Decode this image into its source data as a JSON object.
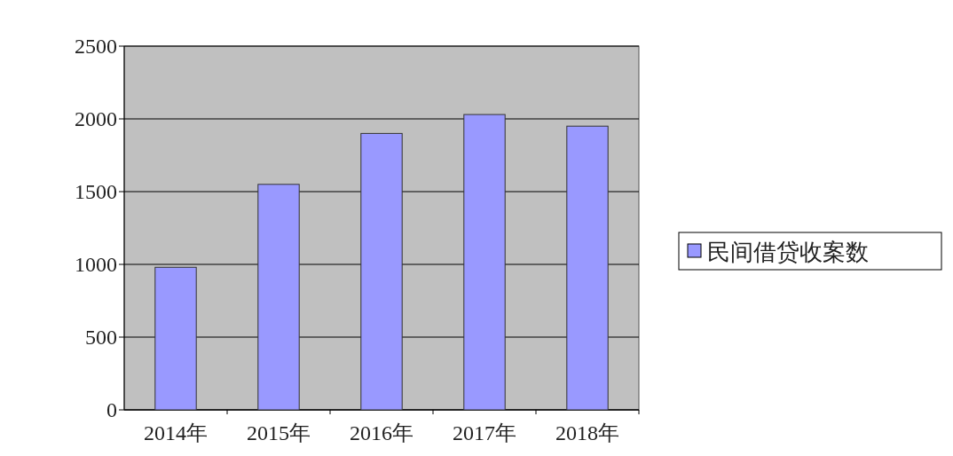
{
  "chart_data": {
    "type": "bar",
    "categories": [
      "2014年",
      "2015年",
      "2016年",
      "2017年",
      "2018年"
    ],
    "series": [
      {
        "name": "民间借贷收案数",
        "color": "#9999ff",
        "values": [
          980,
          1550,
          1900,
          2030,
          1950
        ]
      }
    ],
    "ylim": [
      0,
      2500
    ],
    "yticks": [
      0,
      500,
      1000,
      1500,
      2000,
      2500
    ],
    "grid": "y",
    "legend": "right"
  }
}
